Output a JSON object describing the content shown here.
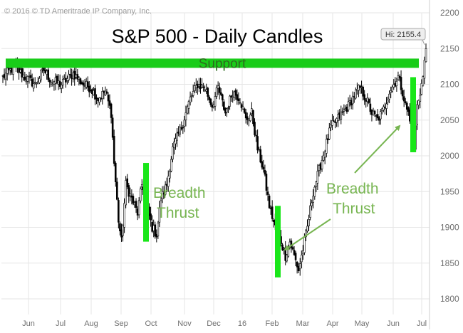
{
  "chart_data": {
    "type": "candlestick",
    "title": "S&P 500 - Daily Candles",
    "copyright": "© 2016 © TD Ameritrade IP Company, Inc.",
    "ylim": [
      1800,
      2200
    ],
    "yticks": [
      1800,
      1850,
      1900,
      1950,
      2000,
      2050,
      2100,
      2150,
      2200
    ],
    "xticks": [
      "Jun",
      "Jul",
      "Aug",
      "Sep",
      "Oct",
      "Nov",
      "Dec",
      "16",
      "Feb",
      "Mar",
      "Apr",
      "May",
      "Jun",
      "Jul"
    ],
    "grid": true,
    "series": [
      {
        "dates": [
          "Jun",
          "Jul",
          "Aug",
          "Aug",
          "Sep",
          "Oct",
          "Nov",
          "Dec",
          "16",
          "Feb",
          "Feb",
          "Mar",
          "Apr",
          "May",
          "Jun",
          "Jun",
          "Jul"
        ],
        "close": [
          2110,
          2100,
          2095,
          1880,
          1940,
          1900,
          2100,
          2070,
          2010,
          1830,
          1870,
          2000,
          2070,
          2060,
          2120,
          2010,
          2150
        ]
      }
    ],
    "support": {
      "label": "Support",
      "value": 2130
    },
    "annotations": [
      {
        "text": [
          "Breadth",
          "Thrust"
        ],
        "period": "Sep–Oct",
        "from": 1880,
        "to": 1990
      },
      {
        "text": [
          "Breadth",
          "Thrust"
        ],
        "period": "Feb",
        "from": 1830,
        "to": 1930
      },
      {
        "period": "Jun",
        "from": 2005,
        "to": 2110
      }
    ],
    "high_label": "Hi: 2155.4",
    "high_value": 2155.4,
    "colors": {
      "support": "#19cc19",
      "thrust_bar": "#19e619",
      "annotation_text": "#77b551",
      "candle": "#000000",
      "grid": "#e6e6e6"
    }
  }
}
